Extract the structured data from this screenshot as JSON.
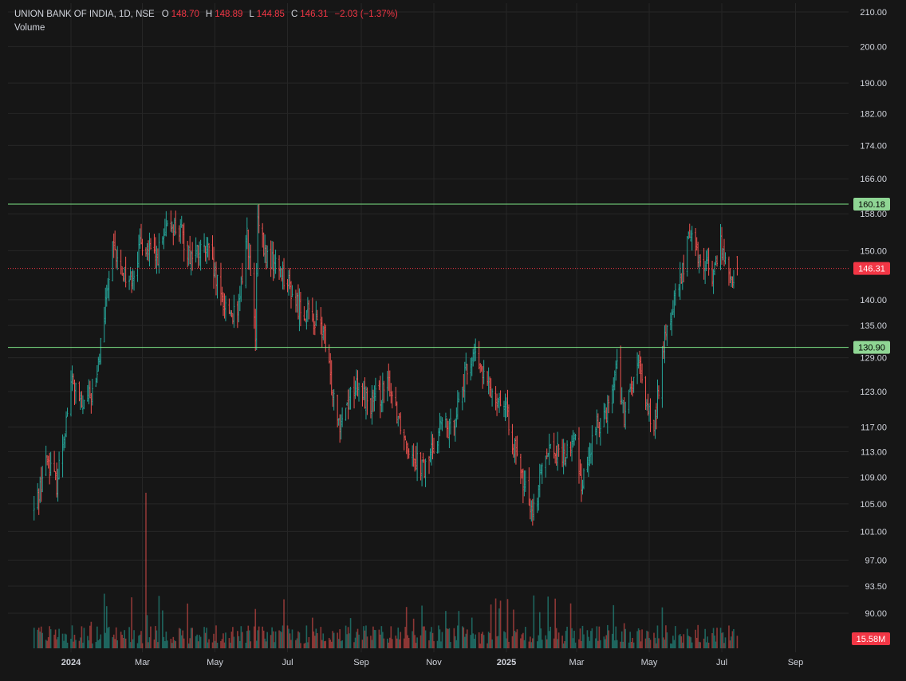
{
  "legend": {
    "symbol": "UNION BANK OF INDIA, 1D, NSE",
    "open_label": "O",
    "open": "148.70",
    "high_label": "H",
    "high": "148.89",
    "low_label": "L",
    "low": "144.85",
    "close_label": "C",
    "close": "146.31",
    "change": "−2.03 (−1.37%)",
    "volume_label": "Volume"
  },
  "colors": {
    "background": "#161616",
    "up": "#26a69a",
    "down": "#ef5350",
    "horizontal_line": "#7ee787",
    "last_price": "#f23645",
    "axis_text": "#d1d4dc"
  },
  "chart_data": {
    "type": "ohlc",
    "title": "UNION BANK OF INDIA, 1D, NSE",
    "y_ticks": [
      "210.00",
      "200.00",
      "190.00",
      "182.00",
      "174.00",
      "166.00",
      "158.00",
      "150.00",
      "140.00",
      "135.00",
      "129.00",
      "123.00",
      "117.00",
      "113.00",
      "109.00",
      "105.00",
      "101.00",
      "97.00",
      "93.50",
      "90.00"
    ],
    "ylim": [
      90,
      210
    ],
    "x_ticks": [
      "2024",
      "Mar",
      "May",
      "Jul",
      "Sep",
      "Nov",
      "2025",
      "Mar",
      "May",
      "Jul",
      "Sep"
    ],
    "x_tick_dates": [
      "2024-01-01",
      "2024-03-01",
      "2024-05-01",
      "2024-07-01",
      "2024-09-01",
      "2024-11-01",
      "2025-01-01",
      "2025-03-01",
      "2025-05-01",
      "2025-07-01",
      "2025-09-01"
    ],
    "bold_x_ticks": [
      "2024",
      "2025"
    ],
    "grid": true,
    "horizontal_lines": [
      {
        "value": 160.18,
        "label": "160.18"
      },
      {
        "value": 130.9,
        "label": "130.90"
      }
    ],
    "last_price": {
      "value": 146.31,
      "label": "146.31"
    },
    "last_volume_label": "15.58M",
    "price_path": [
      [
        "2023-12-01",
        104
      ],
      [
        "2023-12-12",
        112
      ],
      [
        "2023-12-20",
        108
      ],
      [
        "2024-01-02",
        125
      ],
      [
        "2024-01-10",
        120
      ],
      [
        "2024-01-22",
        124
      ],
      [
        "2024-02-05",
        150
      ],
      [
        "2024-02-12",
        146
      ],
      [
        "2024-02-20",
        144
      ],
      [
        "2024-03-01",
        152
      ],
      [
        "2024-03-12",
        148
      ],
      [
        "2024-03-25",
        156
      ],
      [
        "2024-04-02",
        154
      ],
      [
        "2024-04-10",
        149
      ],
      [
        "2024-04-25",
        150
      ],
      [
        "2024-05-06",
        140
      ],
      [
        "2024-05-20",
        136
      ],
      [
        "2024-05-28",
        154
      ],
      [
        "2024-06-04",
        132
      ],
      [
        "2024-06-06",
        156
      ],
      [
        "2024-06-12",
        149
      ],
      [
        "2024-06-26",
        146
      ],
      [
        "2024-07-09",
        139
      ],
      [
        "2024-07-19",
        137
      ],
      [
        "2024-07-31",
        134
      ],
      [
        "2024-08-06",
        125
      ],
      [
        "2024-08-14",
        118
      ],
      [
        "2024-08-26",
        124
      ],
      [
        "2024-09-09",
        121
      ],
      [
        "2024-09-25",
        124
      ],
      [
        "2024-10-08",
        115
      ],
      [
        "2024-10-24",
        110
      ],
      [
        "2024-11-08",
        118
      ],
      [
        "2024-11-14",
        116
      ],
      [
        "2024-11-28",
        126
      ],
      [
        "2024-12-04",
        130
      ],
      [
        "2024-12-16",
        124
      ],
      [
        "2024-12-30",
        121
      ],
      [
        "2025-01-13",
        109
      ],
      [
        "2025-01-24",
        104
      ],
      [
        "2025-02-04",
        114
      ],
      [
        "2025-02-18",
        112
      ],
      [
        "2025-02-28",
        115
      ],
      [
        "2025-03-05",
        108
      ],
      [
        "2025-03-18",
        117
      ],
      [
        "2025-03-28",
        121
      ],
      [
        "2025-04-04",
        128
      ],
      [
        "2025-04-10",
        118
      ],
      [
        "2025-04-21",
        128
      ],
      [
        "2025-05-05",
        116
      ],
      [
        "2025-05-12",
        130
      ],
      [
        "2025-05-20",
        138
      ],
      [
        "2025-05-30",
        146
      ],
      [
        "2025-06-04",
        155
      ],
      [
        "2025-06-11",
        149
      ],
      [
        "2025-06-18",
        147
      ],
      [
        "2025-06-24",
        145
      ],
      [
        "2025-06-30",
        152
      ],
      [
        "2025-07-07",
        144
      ],
      [
        "2025-07-14",
        146.31
      ]
    ],
    "volume_spike_dates": [
      "2024-03-04",
      "2024-06-04",
      "2024-02-21",
      "2025-01-07",
      "2025-05-12",
      "2025-04-01"
    ],
    "volume_range_millions": [
      2,
      70
    ]
  }
}
